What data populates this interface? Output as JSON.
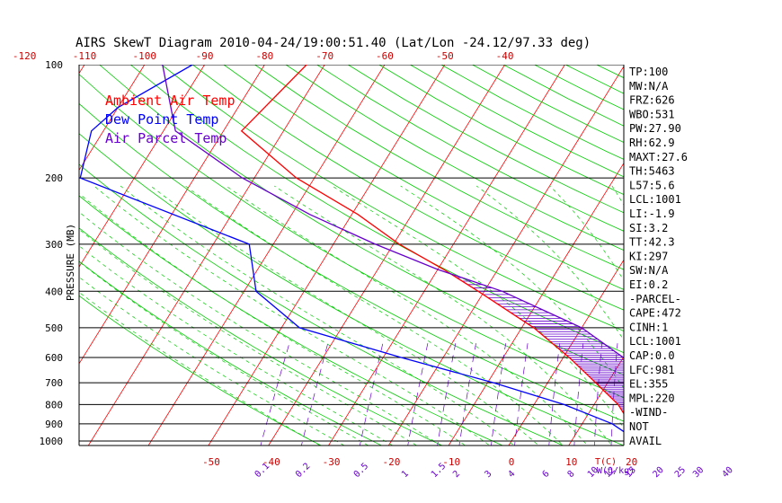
{
  "chart_data": {
    "type": "line",
    "title": "AIRS SkewT Diagram 2010-04-24/19:00:51.40 (Lat/Lon -24.12/97.33 deg)",
    "ylabel": "PRESSURE (MB)",
    "xlabel": "T(C)",
    "mixing_ratio_unit": "W(g/kg)",
    "y_scale": "log",
    "ylim": [
      1050,
      100
    ],
    "x_bottom_range": [
      -50,
      20
    ],
    "x_top_range": [
      -120,
      -40
    ],
    "pressure_levels": [
      100,
      200,
      300,
      400,
      500,
      600,
      700,
      800,
      900,
      1000
    ],
    "x_bottom_ticks": [
      -50,
      -40,
      -30,
      -20,
      -10,
      0,
      10,
      20
    ],
    "x_top_ticks": [
      -120,
      -110,
      -100,
      -90,
      -80,
      -70,
      -60,
      -50,
      -40
    ],
    "mixing_ratio_labels": [
      "0.1",
      "0.2",
      "0.5",
      "1",
      "1.5",
      "2",
      "3",
      "4",
      "6",
      "8",
      "10",
      "12",
      "15",
      "20",
      "25",
      "30",
      "40"
    ],
    "legend": [
      {
        "name": "Ambient Air Temp",
        "color": "#ff0000"
      },
      {
        "name": "Dew Point Temp",
        "color": "#0000ff"
      },
      {
        "name": "Air Parcel Temp",
        "color": "#6600cc"
      }
    ],
    "legend_position": "top-left",
    "series": [
      {
        "name": "Ambient Air Temp",
        "color": "#ff0000",
        "points": [
          {
            "p": 100,
            "t": -73
          },
          {
            "p": 150,
            "t": -77
          },
          {
            "p": 200,
            "t": -63
          },
          {
            "p": 250,
            "t": -49
          },
          {
            "p": 300,
            "t": -39
          },
          {
            "p": 350,
            "t": -29
          },
          {
            "p": 400,
            "t": -21
          },
          {
            "p": 500,
            "t": -8
          },
          {
            "p": 600,
            "t": 1
          },
          {
            "p": 700,
            "t": 8
          },
          {
            "p": 800,
            "t": 14
          },
          {
            "p": 900,
            "t": 18
          },
          {
            "p": 1000,
            "t": 22
          }
        ]
      },
      {
        "name": "Dew Point Temp",
        "color": "#0000ff",
        "points": [
          {
            "p": 100,
            "t": -92
          },
          {
            "p": 130,
            "t": -100
          },
          {
            "p": 150,
            "t": -102
          },
          {
            "p": 200,
            "t": -99
          },
          {
            "p": 300,
            "t": -64
          },
          {
            "p": 400,
            "t": -58
          },
          {
            "p": 500,
            "t": -47
          },
          {
            "p": 600,
            "t": -27
          },
          {
            "p": 700,
            "t": -9
          },
          {
            "p": 800,
            "t": 5
          },
          {
            "p": 900,
            "t": 15
          },
          {
            "p": 1000,
            "t": 21
          }
        ]
      },
      {
        "name": "Air Parcel Temp",
        "color": "#6600cc",
        "points": [
          {
            "p": 100,
            "t": -97
          },
          {
            "p": 150,
            "t": -88
          },
          {
            "p": 200,
            "t": -72
          },
          {
            "p": 250,
            "t": -57
          },
          {
            "p": 300,
            "t": -43
          },
          {
            "p": 350,
            "t": -30
          },
          {
            "p": 400,
            "t": -17
          },
          {
            "p": 500,
            "t": 0
          },
          {
            "p": 600,
            "t": 10
          },
          {
            "p": 700,
            "t": 15
          },
          {
            "p": 800,
            "t": 18
          },
          {
            "p": 900,
            "t": 21
          },
          {
            "p": 1000,
            "t": 22
          }
        ]
      }
    ],
    "stats_labels": [
      "TP:100",
      "MW:N/A",
      "FRZ:626",
      "WBO:531",
      "PW:27.90",
      "RH:62.9",
      "MAXT:27.6",
      "TH:5463",
      "L57:5.6",
      "LCL:1001",
      "LI:-1.9",
      "SI:3.2",
      "TT:42.3",
      "KI:297",
      "SW:N/A",
      "EI:0.2",
      "-PARCEL-",
      "CAPE:472",
      "CINH:1",
      "LCL:1001",
      "CAP:0.0",
      "LFC:981",
      "EL:355",
      "MPL:220",
      "-WIND-",
      "NOT",
      "AVAIL"
    ]
  }
}
